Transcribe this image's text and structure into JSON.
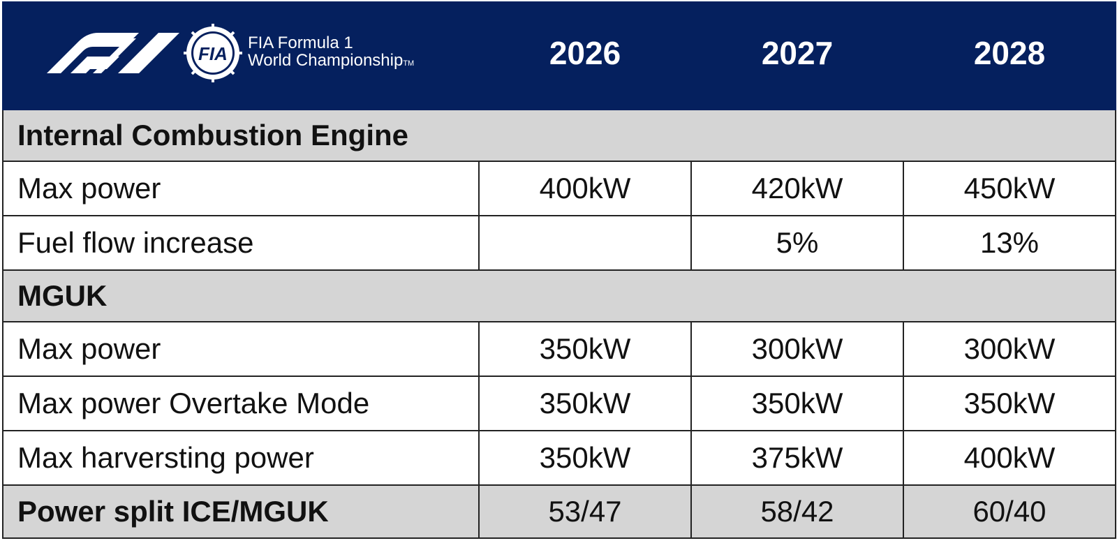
{
  "header": {
    "brand_line1": "FIA Formula 1",
    "brand_line2": "World Championship",
    "trademark": "TM",
    "badge_text": "FIA",
    "years": [
      "2026",
      "2027",
      "2028"
    ]
  },
  "sections": [
    {
      "title": "Internal Combustion Engine",
      "rows": [
        {
          "label": "Max power",
          "values": [
            "400kW",
            "420kW",
            "450kW"
          ]
        },
        {
          "label": "Fuel flow increase",
          "values": [
            "",
            "5%",
            "13%"
          ]
        }
      ]
    },
    {
      "title": "MGUK",
      "rows": [
        {
          "label": "Max power",
          "values": [
            "350kW",
            "300kW",
            "300kW"
          ]
        },
        {
          "label": "Max power Overtake Mode",
          "values": [
            "350kW",
            "350kW",
            "350kW"
          ]
        },
        {
          "label": "Max harversting power",
          "values": [
            "350kW",
            "375kW",
            "400kW"
          ]
        }
      ]
    }
  ],
  "summary": {
    "label": "Power split ICE/MGUK",
    "values": [
      "53/47",
      "58/42",
      "60/40"
    ]
  },
  "colors": {
    "header_bg": "#05205e",
    "section_bg": "#d5d5d5",
    "border": "#222222"
  },
  "icons": {
    "f1_logo": "f1-logo-icon",
    "fia_badge": "fia-badge-icon"
  }
}
